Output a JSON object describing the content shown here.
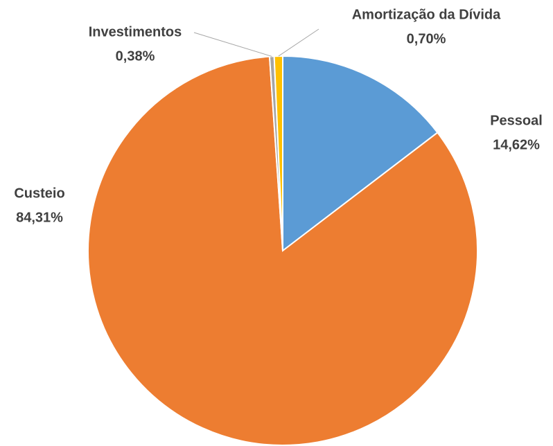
{
  "chart_data": {
    "type": "pie",
    "categories": [
      "Pessoal",
      "Custeio",
      "Investimentos",
      "Amortização da Dívida"
    ],
    "values": [
      14.62,
      84.31,
      0.38,
      0.7
    ],
    "value_labels": [
      "14,62%",
      "84,31%",
      "0,38%",
      "0,70%"
    ],
    "colors": [
      "#5b9bd5",
      "#ed7d31",
      "#a5a5a5",
      "#ffc000"
    ]
  }
}
